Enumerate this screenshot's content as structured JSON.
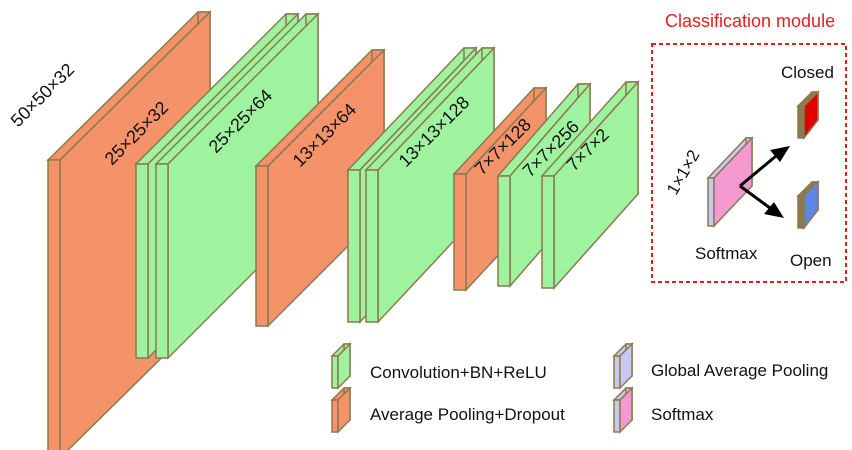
{
  "colors": {
    "conv": "#9ff39f",
    "pool": "#f4936a",
    "gap": "#c9c8f0",
    "softmax": "#f59ad0",
    "edge": "#8a7a4e",
    "closed": "#e00000",
    "open": "#5b86e8",
    "module_border": "#e02020",
    "module_title": "#e02020"
  },
  "layers": [
    {
      "dims": "50×50×32",
      "type": "pool"
    },
    {
      "dims": "25×25×32",
      "type": "pool"
    },
    {
      "dims": "25×25×64",
      "type": "conv"
    },
    {
      "dims": "13×13×64",
      "type": "pool"
    },
    {
      "dims": "13×13×128",
      "type": "conv"
    },
    {
      "dims": "7×7×128",
      "type": "pool"
    },
    {
      "dims": "7×7×256",
      "type": "conv"
    },
    {
      "dims": "7×7×2",
      "type": "conv"
    }
  ],
  "module": {
    "title": "Classification module",
    "vector_dims": "1×1×2",
    "softmax_label": "Softmax",
    "closed_label": "Closed",
    "open_label": "Open"
  },
  "legend": [
    {
      "label": "Convolution+BN+ReLU",
      "type": "conv"
    },
    {
      "label": "Average Pooling+Dropout",
      "type": "pool"
    },
    {
      "label": "Global Average Pooling",
      "type": "gap"
    },
    {
      "label": "Softmax",
      "type": "softmax"
    }
  ]
}
